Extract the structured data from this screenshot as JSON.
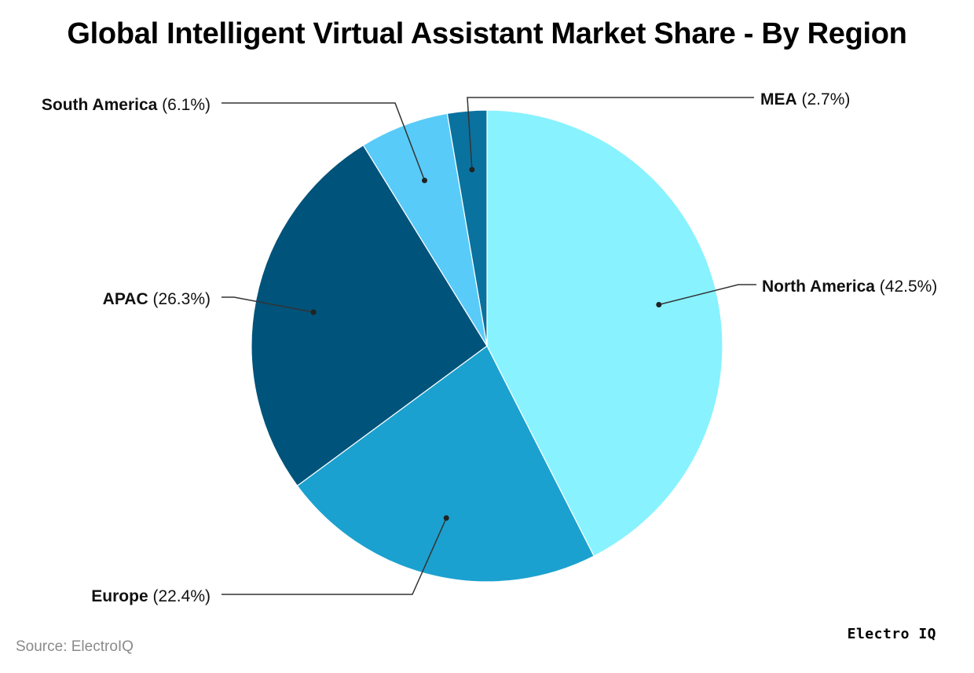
{
  "header": {
    "title": "Global Intelligent Virtual Assistant Market Share - By Region"
  },
  "footer": {
    "source": "Source: ElectroIQ",
    "brand": "Electro IQ"
  },
  "chart_data": {
    "type": "pie",
    "title": "Global Intelligent Virtual Assistant Market Share - By Region",
    "start": "12 o'clock, clockwise",
    "slices": [
      {
        "label": "North America",
        "value": 42.5,
        "display": "(42.5%)",
        "color": "#88F2FF"
      },
      {
        "label": "Europe",
        "value": 22.4,
        "display": "(22.4%)",
        "color": "#1BA1CF"
      },
      {
        "label": "APAC",
        "value": 26.3,
        "display": "(26.3%)",
        "color": "#00537A"
      },
      {
        "label": "South America",
        "value": 6.1,
        "display": "(6.1%)",
        "color": "#59CBF8"
      },
      {
        "label": "MEA",
        "value": 2.7,
        "display": "(2.7%)",
        "color": "#0A729F"
      }
    ]
  }
}
